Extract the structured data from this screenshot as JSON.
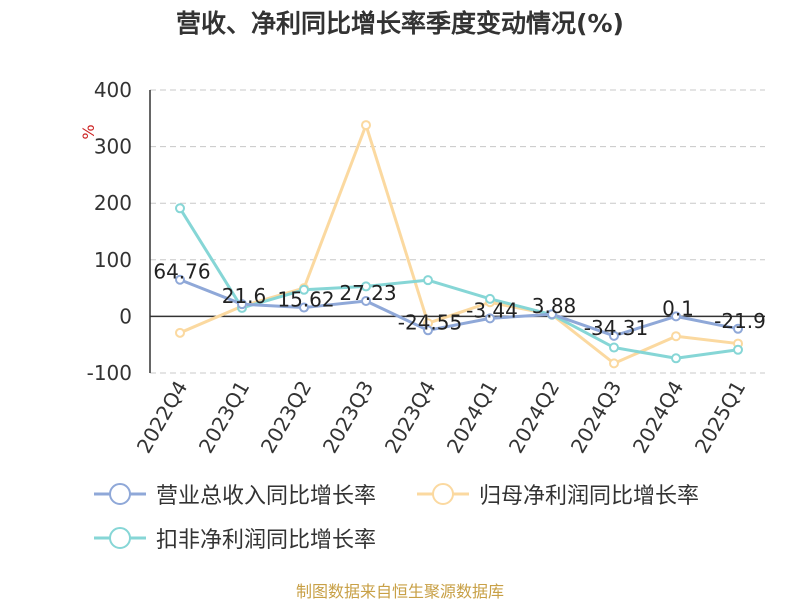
{
  "chart_data": {
    "type": "line",
    "title": "营收、净利同比增长率季度变动情况(%)",
    "ylabel": "%",
    "ylim": [
      -100,
      400
    ],
    "yticks": [
      -100,
      0,
      100,
      200,
      300,
      400
    ],
    "grid": true,
    "legend_position": "bottom",
    "categories": [
      "2022Q4",
      "2023Q1",
      "2023Q2",
      "2023Q3",
      "2023Q4",
      "2024Q1",
      "2024Q2",
      "2024Q3",
      "2024Q4",
      "2025Q1"
    ],
    "series": [
      {
        "name": "营业总收入同比增长率",
        "color": "#8fa8d8",
        "values": [
          64.76,
          21.6,
          15.62,
          27.23,
          -24.55,
          -3.44,
          3.88,
          -34.31,
          0.1,
          -21.9
        ],
        "labels": [
          "64.76",
          "21.6",
          "15.62",
          "27.23",
          "-24.55",
          "-3.44",
          "3.88",
          "-34.31",
          "0.1",
          "-21.9"
        ]
      },
      {
        "name": "归母净利润同比增长率",
        "color": "#fbd9a0",
        "values": [
          -29,
          18,
          50,
          338,
          -12,
          25,
          3,
          -83,
          -35,
          -48
        ]
      },
      {
        "name": "扣非净利润同比增长率",
        "color": "#86d6d6",
        "values": [
          191,
          15,
          47,
          53,
          64,
          31,
          3,
          -55,
          -74,
          -59
        ]
      }
    ]
  },
  "footer": {
    "source": "制图数据来自恒生聚源数据库"
  }
}
